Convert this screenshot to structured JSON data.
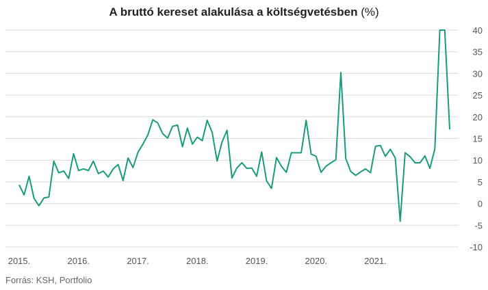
{
  "title": "A bruttó kereset alakulása a költségvetésben",
  "unit": "(%)",
  "source": "Forrás: KSH, Portfolio",
  "colors": {
    "line": "#1a9a78",
    "grid": "#d9d9d9",
    "axis": "#555555"
  },
  "chart_data": {
    "type": "line",
    "title": "A bruttó kereset alakulása a költségvetésben (%)",
    "xlabel": "",
    "ylabel": "",
    "ylim": [
      -10,
      40
    ],
    "yticks": [
      40,
      35,
      30,
      25,
      20,
      15,
      10,
      5,
      0,
      -5,
      -10
    ],
    "grid": true,
    "xtick_labels": [
      "2015.",
      "2016.",
      "2017.",
      "2018.",
      "2019.",
      "2020.",
      "2021."
    ],
    "x_start": "2015-01",
    "series": [
      {
        "values": [
          4.3,
          2.0,
          6.3,
          1.2,
          -0.5,
          1.3,
          1.5,
          9.8,
          7.1,
          7.5,
          5.8,
          11.5,
          7.6,
          8.0,
          7.6,
          9.8,
          6.9,
          7.5,
          6.1,
          8.0,
          9.0,
          5.3,
          10.5,
          8.3,
          11.8,
          13.7,
          15.8,
          19.3,
          18.6,
          16.1,
          15.1,
          17.8,
          18.1,
          13.1,
          17.4,
          13.7,
          15.3,
          14.5,
          19.2,
          16.4,
          9.8,
          14.2,
          16.9,
          5.9,
          8.2,
          9.4,
          8.1,
          8.2,
          6.3,
          11.9,
          5.2,
          3.5,
          10.6,
          8.6,
          7.2,
          11.7,
          11.7,
          11.7,
          19.2,
          11.4,
          10.9,
          7.2,
          8.6,
          9.4,
          10.1,
          30.2,
          10.4,
          7.4,
          6.5,
          7.3,
          8.0,
          7.1,
          13.2,
          13.4,
          10.9,
          12.5,
          10.5,
          -4.1,
          11.7,
          10.8,
          9.4,
          9.4,
          11.0,
          8.1,
          12.6,
          40.0,
          40.0,
          17.1
        ]
      }
    ]
  }
}
